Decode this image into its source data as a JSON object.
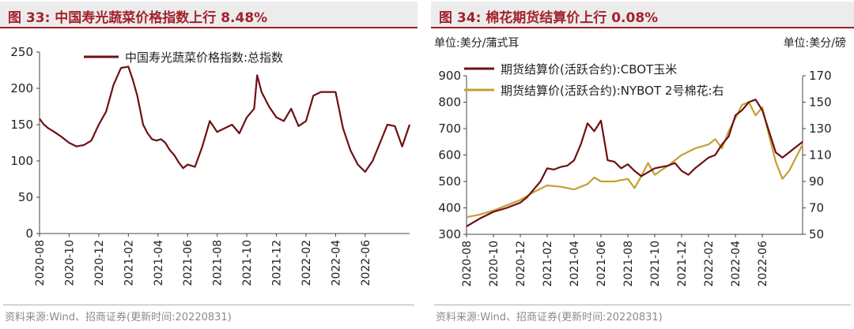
{
  "colors": {
    "accent": "#a4212b",
    "cbot": "#6e1014",
    "cotton": "#c4a033",
    "index": "#6e1014"
  },
  "charts": [
    {
      "title": "图 33:  中国寿光蔬菜价格指数上行 8.48%",
      "source": "资料来源:Wind、招商证券(更新时间:20220831)"
    },
    {
      "title": "图 34:  棉花期货结算价上行 0.08%",
      "unit_left": "单位:美分/蒲式耳",
      "unit_right": "单位:美分/磅",
      "source": "资料来源:Wind、招商证券(更新时间:20220831)"
    }
  ],
  "chart_data": [
    {
      "type": "line",
      "title": "中国寿光蔬菜价格指数上行 8.48%",
      "x_ticks": [
        "2020-08",
        "2020-10",
        "2020-12",
        "2021-02",
        "2021-04",
        "2021-06",
        "2021-08",
        "2021-10",
        "2021-12",
        "2022-02",
        "2022-04",
        "2022-06"
      ],
      "x_range": [
        0,
        25
      ],
      "ylim": [
        0,
        250
      ],
      "y_ticks": [
        0,
        50,
        100,
        150,
        200,
        250
      ],
      "series": [
        {
          "name": "中国寿光蔬菜价格指数:总指数",
          "x": [
            0,
            0.3,
            0.6,
            1,
            1.5,
            2,
            2.5,
            3,
            3.5,
            4,
            4.5,
            5,
            5.5,
            6,
            6.3,
            6.6,
            7,
            7.3,
            7.6,
            7.9,
            8.2,
            8.5,
            8.8,
            9.1,
            9.4,
            9.7,
            10,
            10.5,
            11,
            11.5,
            12,
            12.5,
            13,
            13.5,
            14,
            14.5,
            14.7,
            15,
            15.5,
            16,
            16.5,
            17,
            17.5,
            18,
            18.5,
            19,
            19.5,
            20,
            20.5,
            21,
            21.5,
            22,
            22.5,
            23,
            23.5,
            24,
            24.5,
            25
          ],
          "values": [
            158,
            150,
            145,
            140,
            133,
            125,
            120,
            122,
            128,
            150,
            168,
            205,
            228,
            230,
            212,
            190,
            150,
            138,
            130,
            128,
            130,
            125,
            115,
            108,
            98,
            90,
            95,
            92,
            120,
            155,
            140,
            145,
            150,
            138,
            160,
            172,
            218,
            195,
            175,
            160,
            155,
            172,
            148,
            155,
            190,
            195,
            195,
            195,
            145,
            115,
            95,
            85,
            100,
            125,
            150,
            148,
            120,
            150
          ]
        }
      ]
    },
    {
      "type": "line",
      "title": "棉花期货结算价上行 0.08%",
      "x_ticks": [
        "2020-08",
        "2020-10",
        "2020-12",
        "2021-02",
        "2021-04",
        "2021-06",
        "2021-08",
        "2021-10",
        "2021-12",
        "2022-02",
        "2022-04",
        "2022-06"
      ],
      "x_range": [
        0,
        25
      ],
      "ylim_left": [
        300,
        900
      ],
      "y_ticks_left": [
        300,
        400,
        500,
        600,
        700,
        800,
        900
      ],
      "ylim_right": [
        50,
        170
      ],
      "y_ticks_right": [
        50,
        70,
        90,
        110,
        130,
        150,
        170
      ],
      "series": [
        {
          "name": "期货结算价(活跃合约):CBOT玉米",
          "axis": "left",
          "x": [
            0,
            1,
            2,
            3,
            4,
            4.5,
            5,
            5.5,
            6,
            6.5,
            7,
            7.5,
            8,
            8.5,
            9,
            9.5,
            10,
            10.5,
            11,
            11.5,
            12,
            12.5,
            13,
            14,
            15,
            15.5,
            16,
            16.5,
            17,
            17.5,
            18,
            18.5,
            19,
            19.5,
            20,
            20.5,
            21,
            21.5,
            22,
            22.5,
            23,
            23.5,
            24,
            24.5,
            25
          ],
          "values": [
            330,
            360,
            385,
            400,
            420,
            440,
            470,
            500,
            550,
            545,
            555,
            560,
            580,
            640,
            720,
            690,
            730,
            580,
            575,
            550,
            565,
            540,
            520,
            550,
            560,
            570,
            540,
            525,
            550,
            570,
            590,
            600,
            640,
            670,
            750,
            770,
            800,
            810,
            770,
            690,
            610,
            590,
            610,
            630,
            650
          ]
        },
        {
          "name": "期货结算价(活跃合约):NYBOT 2号棉花:右",
          "axis": "right",
          "x": [
            0,
            1,
            2,
            3,
            4,
            5,
            6,
            7,
            8,
            9,
            9.5,
            10,
            11,
            12,
            12.5,
            13,
            13.5,
            14,
            15,
            16,
            17,
            18,
            18.5,
            19,
            19.5,
            20,
            20.5,
            21,
            21.5,
            22,
            22.5,
            23,
            23.5,
            24,
            24.5,
            25
          ],
          "values": [
            63,
            65,
            68,
            72,
            76,
            82,
            87,
            86,
            84,
            88,
            93,
            90,
            90,
            92,
            85,
            94,
            104,
            95,
            102,
            110,
            115,
            118,
            122,
            115,
            128,
            138,
            148,
            150,
            140,
            146,
            125,
            105,
            92,
            98,
            108,
            118
          ]
        }
      ]
    }
  ]
}
